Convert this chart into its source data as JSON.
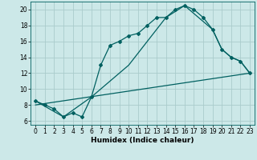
{
  "title": "",
  "xlabel": "Humidex (Indice chaleur)",
  "ylabel": "",
  "bg_color": "#cce8e8",
  "grid_color": "#aacccc",
  "line_color": "#006060",
  "xlim": [
    -0.5,
    23.5
  ],
  "ylim": [
    5.5,
    21.0
  ],
  "xticks": [
    0,
    1,
    2,
    3,
    4,
    5,
    6,
    7,
    8,
    9,
    10,
    11,
    12,
    13,
    14,
    15,
    16,
    17,
    18,
    19,
    20,
    21,
    22,
    23
  ],
  "yticks": [
    6,
    8,
    10,
    12,
    14,
    16,
    18,
    20
  ],
  "line1_x": [
    0,
    1,
    2,
    3,
    4,
    5,
    6,
    7,
    8,
    9,
    10,
    11,
    12,
    13,
    14,
    15,
    16,
    17,
    18,
    19,
    20,
    21,
    22,
    23
  ],
  "line1_y": [
    8.5,
    8.0,
    7.5,
    6.5,
    7.0,
    6.5,
    9.0,
    13.0,
    15.5,
    16.0,
    16.7,
    17.0,
    18.0,
    19.0,
    19.0,
    20.0,
    20.5,
    20.0,
    19.0,
    17.5,
    15.0,
    14.0,
    13.5,
    12.0
  ],
  "line2_x": [
    0,
    23
  ],
  "line2_y": [
    8.0,
    12.0
  ],
  "line3_x": [
    0,
    3,
    6,
    10,
    14,
    16,
    19,
    20,
    21,
    22,
    23
  ],
  "line3_y": [
    8.5,
    6.5,
    9.0,
    13.0,
    19.0,
    20.5,
    17.5,
    15.0,
    14.0,
    13.5,
    12.0
  ],
  "xlabel_fontsize": 6.5,
  "tick_fontsize": 5.5
}
